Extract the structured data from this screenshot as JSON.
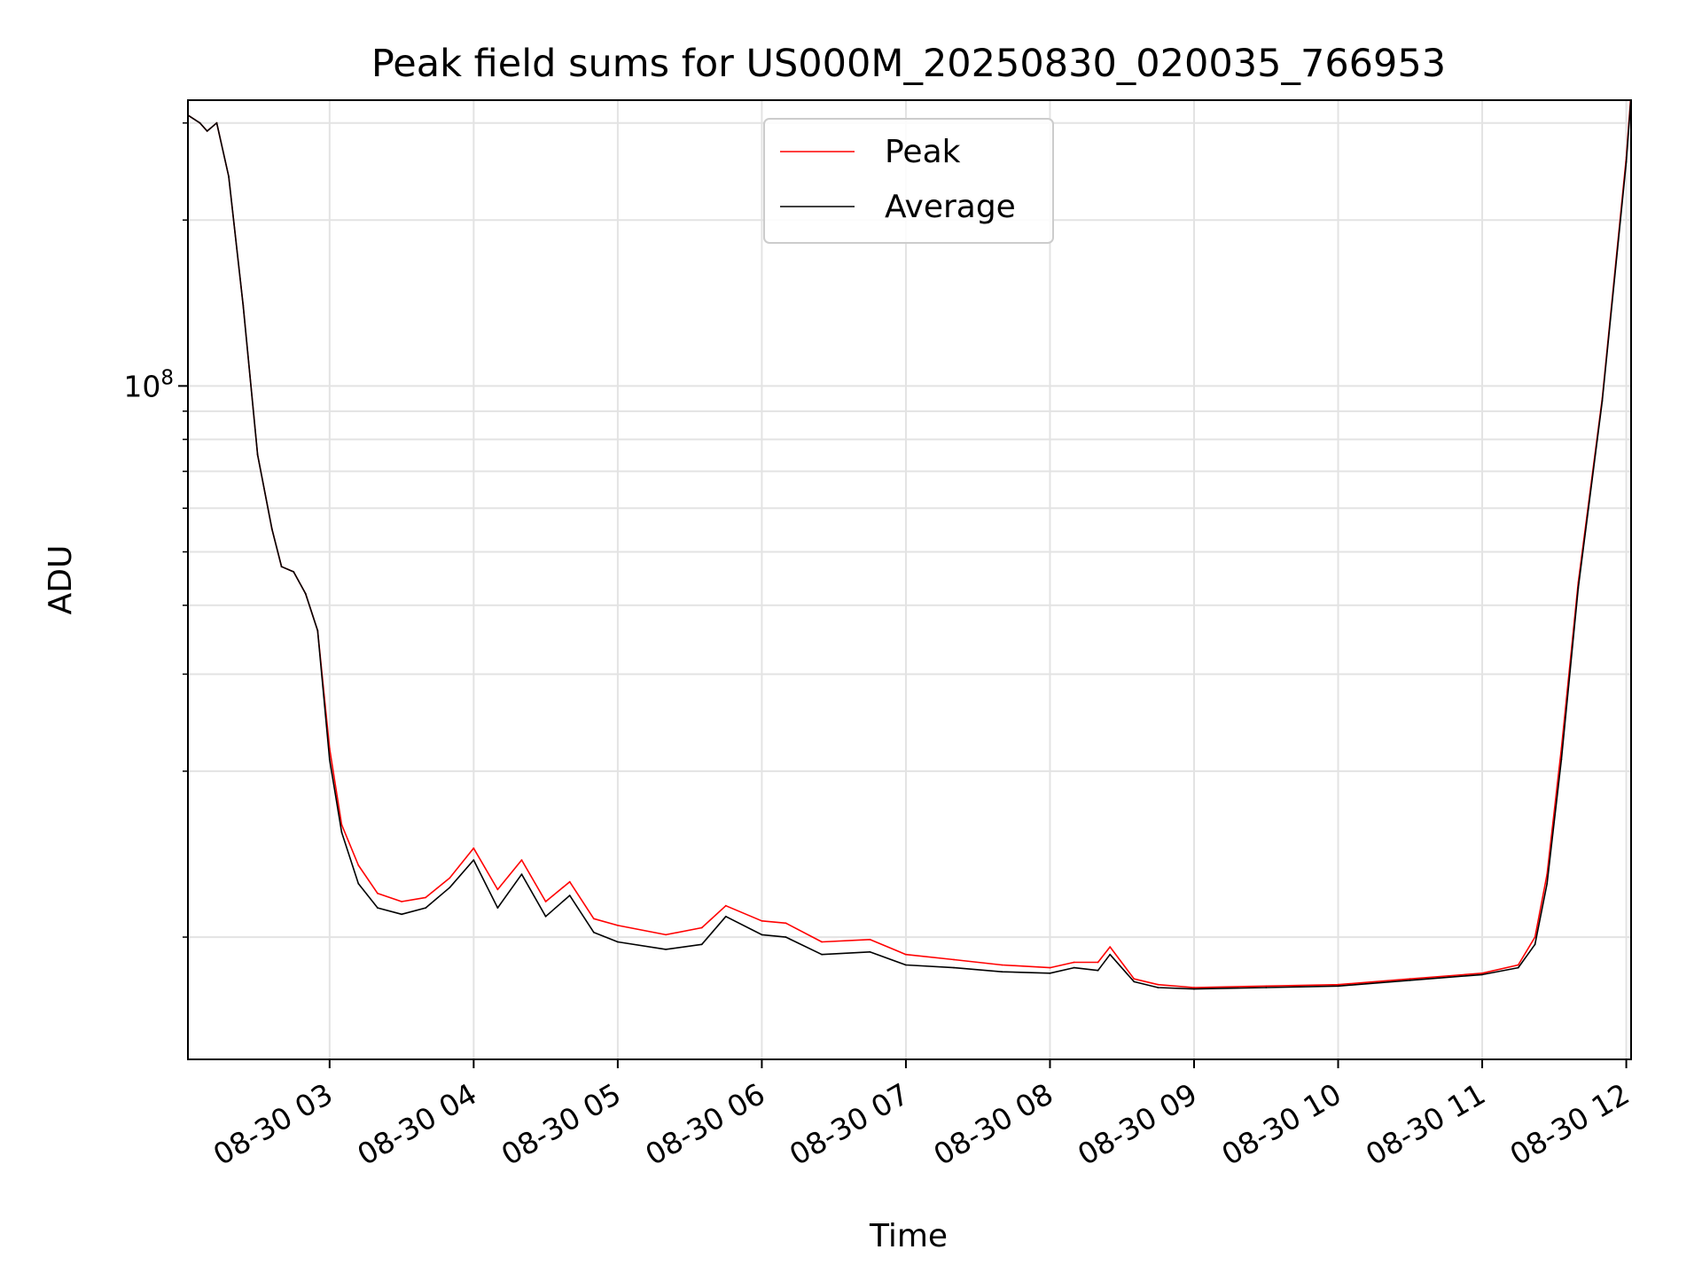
{
  "chart_data": {
    "type": "line",
    "title": "Peak field sums for US000M_20250830_020035_766953",
    "xlabel": "Time",
    "ylabel": "ADU",
    "x_scale": "time",
    "y_scale": "log",
    "xlim": [
      "2025-08-30 02:01",
      "2025-08-30 12:02"
    ],
    "ylim": [
      6000000,
      330000000
    ],
    "grid": true,
    "legend_position": "upper-center",
    "x_ticks": [
      {
        "t": "2025-08-30 03:00",
        "label": "08-30 03"
      },
      {
        "t": "2025-08-30 04:00",
        "label": "08-30 04"
      },
      {
        "t": "2025-08-30 05:00",
        "label": "08-30 05"
      },
      {
        "t": "2025-08-30 06:00",
        "label": "08-30 06"
      },
      {
        "t": "2025-08-30 07:00",
        "label": "08-30 07"
      },
      {
        "t": "2025-08-30 08:00",
        "label": "08-30 08"
      },
      {
        "t": "2025-08-30 09:00",
        "label": "08-30 09"
      },
      {
        "t": "2025-08-30 10:00",
        "label": "08-30 10"
      },
      {
        "t": "2025-08-30 11:00",
        "label": "08-30 11"
      },
      {
        "t": "2025-08-30 12:00",
        "label": "08-30 12"
      }
    ],
    "y_major_ticks": [
      {
        "value": 100000000,
        "label_base": "10",
        "label_exp": "8"
      }
    ],
    "y_minor_ticks": [
      10000000,
      20000000,
      30000000,
      40000000,
      50000000,
      60000000,
      70000000,
      80000000,
      90000000,
      200000000,
      300000000
    ],
    "series": [
      {
        "name": "Peak",
        "color": "#ff0000",
        "x": [
          "2025-08-30 02:01",
          "2025-08-30 02:06",
          "2025-08-30 02:09",
          "2025-08-30 02:13",
          "2025-08-30 02:18",
          "2025-08-30 02:24",
          "2025-08-30 02:30",
          "2025-08-30 02:36",
          "2025-08-30 02:40",
          "2025-08-30 02:45",
          "2025-08-30 02:50",
          "2025-08-30 02:55",
          "2025-08-30 03:00",
          "2025-08-30 03:05",
          "2025-08-30 03:12",
          "2025-08-30 03:20",
          "2025-08-30 03:30",
          "2025-08-30 03:40",
          "2025-08-30 03:50",
          "2025-08-30 04:00",
          "2025-08-30 04:10",
          "2025-08-30 04:20",
          "2025-08-30 04:30",
          "2025-08-30 04:40",
          "2025-08-30 04:50",
          "2025-08-30 05:00",
          "2025-08-30 05:20",
          "2025-08-30 05:35",
          "2025-08-30 05:45",
          "2025-08-30 06:00",
          "2025-08-30 06:10",
          "2025-08-30 06:25",
          "2025-08-30 06:45",
          "2025-08-30 07:00",
          "2025-08-30 07:20",
          "2025-08-30 07:40",
          "2025-08-30 08:00",
          "2025-08-30 08:10",
          "2025-08-30 08:20",
          "2025-08-30 08:25",
          "2025-08-30 08:35",
          "2025-08-30 08:45",
          "2025-08-30 09:00",
          "2025-08-30 09:30",
          "2025-08-30 10:00",
          "2025-08-30 10:30",
          "2025-08-30 11:00",
          "2025-08-30 11:15",
          "2025-08-30 11:22",
          "2025-08-30 11:27",
          "2025-08-30 11:33",
          "2025-08-30 11:40",
          "2025-08-30 11:50",
          "2025-08-30 12:00",
          "2025-08-30 12:02"
        ],
        "y": [
          310000000,
          300000000,
          290000000,
          300000000,
          240000000,
          140000000,
          75000000,
          55000000,
          47000000,
          46000000,
          42000000,
          36000000,
          22000000,
          16000000,
          13500000,
          12000000,
          11600000,
          11800000,
          12800000,
          14500000,
          12200000,
          13800000,
          11600000,
          12600000,
          10800000,
          10500000,
          10100000,
          10400000,
          11400000,
          10700000,
          10600000,
          9800000,
          9900000,
          9300000,
          9100000,
          8900000,
          8800000,
          9000000,
          9000000,
          9600000,
          8400000,
          8200000,
          8100000,
          8150000,
          8200000,
          8400000,
          8600000,
          8900000,
          10000000,
          13000000,
          22000000,
          44000000,
          95000000,
          260000000,
          340000000
        ]
      },
      {
        "name": "Average",
        "color": "#000000",
        "x": [
          "2025-08-30 02:01",
          "2025-08-30 02:06",
          "2025-08-30 02:09",
          "2025-08-30 02:13",
          "2025-08-30 02:18",
          "2025-08-30 02:24",
          "2025-08-30 02:30",
          "2025-08-30 02:36",
          "2025-08-30 02:40",
          "2025-08-30 02:45",
          "2025-08-30 02:50",
          "2025-08-30 02:55",
          "2025-08-30 03:00",
          "2025-08-30 03:05",
          "2025-08-30 03:12",
          "2025-08-30 03:20",
          "2025-08-30 03:30",
          "2025-08-30 03:40",
          "2025-08-30 03:50",
          "2025-08-30 04:00",
          "2025-08-30 04:10",
          "2025-08-30 04:20",
          "2025-08-30 04:30",
          "2025-08-30 04:40",
          "2025-08-30 04:50",
          "2025-08-30 05:00",
          "2025-08-30 05:20",
          "2025-08-30 05:35",
          "2025-08-30 05:45",
          "2025-08-30 06:00",
          "2025-08-30 06:10",
          "2025-08-30 06:25",
          "2025-08-30 06:45",
          "2025-08-30 07:00",
          "2025-08-30 07:20",
          "2025-08-30 07:40",
          "2025-08-30 08:00",
          "2025-08-30 08:10",
          "2025-08-30 08:20",
          "2025-08-30 08:25",
          "2025-08-30 08:35",
          "2025-08-30 08:45",
          "2025-08-30 09:00",
          "2025-08-30 09:30",
          "2025-08-30 10:00",
          "2025-08-30 10:30",
          "2025-08-30 11:00",
          "2025-08-30 11:15",
          "2025-08-30 11:22",
          "2025-08-30 11:27",
          "2025-08-30 11:33",
          "2025-08-30 11:40",
          "2025-08-30 11:50",
          "2025-08-30 12:00",
          "2025-08-30 12:02"
        ],
        "y": [
          310000000,
          300000000,
          290000000,
          300000000,
          240000000,
          140000000,
          75000000,
          55000000,
          47000000,
          46000000,
          42000000,
          36000000,
          21000000,
          15500000,
          12500000,
          11300000,
          11000000,
          11300000,
          12300000,
          13800000,
          11300000,
          13000000,
          10900000,
          11900000,
          10200000,
          9800000,
          9500000,
          9700000,
          10900000,
          10100000,
          10000000,
          9300000,
          9400000,
          8900000,
          8800000,
          8650000,
          8600000,
          8800000,
          8700000,
          9300000,
          8300000,
          8100000,
          8050000,
          8100000,
          8150000,
          8350000,
          8550000,
          8800000,
          9700000,
          12500000,
          21000000,
          43000000,
          94000000,
          255000000,
          335000000
        ]
      }
    ]
  }
}
